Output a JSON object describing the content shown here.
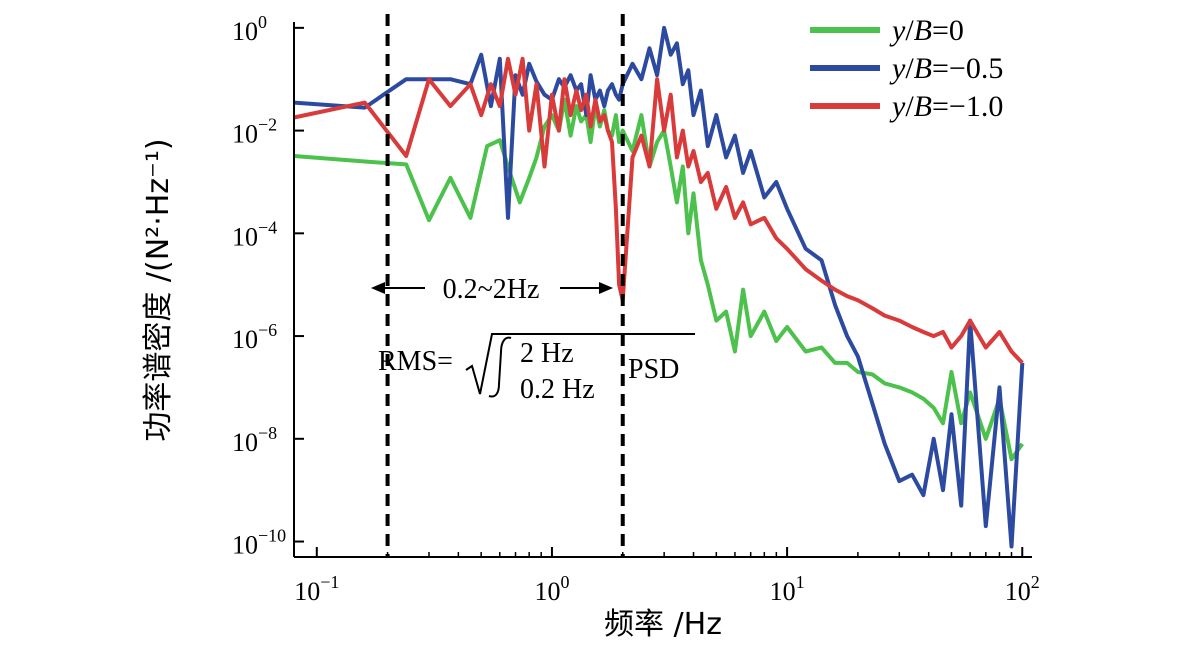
{
  "chart_data": {
    "type": "line",
    "title": "",
    "xlabel": "频率 /Hz",
    "ylabel": "功率谱密度 /(N²·Hz⁻¹)",
    "xscale": "log",
    "yscale": "log",
    "xlim": [
      0.08,
      110
    ],
    "ylim": [
      5e-11,
      1.3
    ],
    "grid": false,
    "legend_position": "top-right",
    "x_ticks": [
      {
        "base": "10",
        "exp": "−1",
        "value": 0.1
      },
      {
        "base": "10",
        "exp": "0",
        "value": 1
      },
      {
        "base": "10",
        "exp": "1",
        "value": 10
      },
      {
        "base": "10",
        "exp": "2",
        "value": 100
      }
    ],
    "y_ticks": [
      {
        "base": "10",
        "exp": "0",
        "value": 1
      },
      {
        "base": "10",
        "exp": "−2",
        "value": 0.01
      },
      {
        "base": "10",
        "exp": "−4",
        "value": 0.0001
      },
      {
        "base": "10",
        "exp": "−6",
        "value": 1e-06
      },
      {
        "base": "10",
        "exp": "−8",
        "value": 1e-08
      },
      {
        "base": "10",
        "exp": "−10",
        "value": 1e-10
      }
    ],
    "series": [
      {
        "name": "y/B=0",
        "name_parts": [
          "y",
          "/",
          "B",
          "=0"
        ],
        "color": "#4cc14c",
        "x": [
          0.08,
          0.16,
          0.24,
          0.3,
          0.37,
          0.45,
          0.53,
          0.6,
          0.66,
          0.73,
          0.8,
          0.86,
          0.93,
          1.0,
          1.07,
          1.13,
          1.2,
          1.27,
          1.33,
          1.4,
          1.46,
          1.53,
          1.6,
          1.67,
          1.73,
          1.8,
          1.87,
          1.93,
          2.0,
          2.2,
          2.4,
          2.6,
          2.8,
          3.0,
          3.2,
          3.4,
          3.6,
          3.8,
          4.0,
          4.3,
          4.6,
          5.0,
          5.5,
          6.0,
          6.5,
          7.0,
          8.0,
          9.0,
          10,
          12,
          14,
          16,
          18,
          20,
          23,
          26,
          30,
          34,
          38,
          42,
          46,
          50,
          55,
          60,
          70,
          80,
          90,
          100
        ],
        "y": [
          0.0032,
          0.0025,
          0.0022,
          0.00018,
          0.0012,
          0.0002,
          0.005,
          0.0065,
          0.0016,
          0.0004,
          0.0012,
          0.003,
          0.012,
          0.02,
          0.01,
          0.04,
          0.008,
          0.03,
          0.015,
          0.02,
          0.006,
          0.03,
          0.012,
          0.025,
          0.01,
          0.008,
          0.02,
          0.006,
          0.01,
          0.004,
          0.02,
          0.002,
          0.006,
          0.01,
          0.002,
          0.0004,
          0.002,
          0.0001,
          0.0006,
          3e-05,
          1e-05,
          2e-06,
          3e-06,
          5e-07,
          8e-06,
          1e-06,
          3e-06,
          8e-07,
          1.5e-06,
          5e-07,
          6e-07,
          3e-07,
          3e-07,
          2e-07,
          1.8e-07,
          1.2e-07,
          1e-07,
          8e-08,
          6e-08,
          4e-08,
          2e-08,
          2e-07,
          2e-08,
          8e-08,
          1e-08,
          6e-08,
          4e-09,
          8e-09
        ]
      },
      {
        "name": "y/B=−0.5",
        "name_parts": [
          "y",
          "/",
          "B",
          "=−0.5"
        ],
        "color": "#2c4aa0",
        "x": [
          0.08,
          0.16,
          0.24,
          0.3,
          0.37,
          0.45,
          0.5,
          0.55,
          0.6,
          0.65,
          0.7,
          0.75,
          0.8,
          0.86,
          0.93,
          1.0,
          1.07,
          1.13,
          1.2,
          1.27,
          1.33,
          1.4,
          1.46,
          1.53,
          1.6,
          1.67,
          1.73,
          1.8,
          1.87,
          1.93,
          2.0,
          2.2,
          2.4,
          2.6,
          2.8,
          3.0,
          3.2,
          3.4,
          3.6,
          3.8,
          4.0,
          4.3,
          4.6,
          5.0,
          5.5,
          6.0,
          6.5,
          7.0,
          8.0,
          9.0,
          10,
          12,
          14,
          16,
          18,
          20,
          23,
          26,
          30,
          34,
          38,
          42,
          46,
          50,
          55,
          60,
          70,
          80,
          90,
          100
        ],
        "y": [
          0.035,
          0.028,
          0.1,
          0.1,
          0.1,
          0.08,
          0.3,
          0.03,
          0.25,
          0.0002,
          0.12,
          0.05,
          0.2,
          0.09,
          0.05,
          0.04,
          0.1,
          0.07,
          0.12,
          0.06,
          0.08,
          0.02,
          0.12,
          0.04,
          0.06,
          0.03,
          0.06,
          0.08,
          0.05,
          0.04,
          0.08,
          0.2,
          0.1,
          0.4,
          0.12,
          1.0,
          0.3,
          0.5,
          0.08,
          0.15,
          0.02,
          0.06,
          0.005,
          0.02,
          0.003,
          0.008,
          0.0015,
          0.004,
          0.0005,
          0.001,
          0.0003,
          5e-05,
          3e-05,
          4e-06,
          1e-06,
          4e-07,
          5e-08,
          8e-09,
          1.5e-09,
          2e-09,
          8e-10,
          1e-08,
          1e-09,
          3e-08,
          5e-10,
          2e-06,
          2e-10,
          1e-07,
          8e-11,
          3e-07
        ]
      },
      {
        "name": "y/B=−1.0",
        "name_parts": [
          "y",
          "/",
          "B",
          "=−1.0"
        ],
        "color": "#d93a3a",
        "x": [
          0.08,
          0.16,
          0.24,
          0.3,
          0.37,
          0.45,
          0.5,
          0.55,
          0.6,
          0.65,
          0.7,
          0.75,
          0.8,
          0.86,
          0.93,
          1.0,
          1.07,
          1.13,
          1.2,
          1.27,
          1.33,
          1.4,
          1.46,
          1.53,
          1.6,
          1.67,
          1.73,
          1.8,
          1.87,
          1.93,
          2.0,
          2.2,
          2.4,
          2.6,
          2.8,
          3.0,
          3.2,
          3.4,
          3.6,
          3.8,
          4.0,
          4.3,
          4.6,
          5.0,
          5.5,
          6.0,
          6.5,
          7.0,
          8.0,
          9.0,
          10,
          12,
          14,
          16,
          18,
          20,
          23,
          26,
          30,
          34,
          38,
          42,
          46,
          50,
          55,
          60,
          70,
          80,
          90,
          100
        ],
        "y": [
          0.018,
          0.035,
          0.0032,
          0.1,
          0.03,
          0.08,
          0.02,
          0.08,
          0.03,
          0.25,
          0.05,
          0.25,
          0.01,
          0.08,
          0.002,
          0.05,
          0.01,
          0.1,
          0.02,
          0.06,
          0.025,
          0.05,
          0.012,
          0.04,
          0.015,
          0.02,
          0.01,
          0.006,
          0.0003,
          1e-05,
          5e-06,
          0.003,
          0.008,
          0.002,
          0.1,
          0.01,
          0.05,
          0.003,
          0.01,
          0.002,
          0.004,
          0.001,
          0.0015,
          0.0003,
          0.0008,
          0.0002,
          0.0004,
          0.00015,
          0.0002,
          8e-05,
          5e-05,
          2e-05,
          1.2e-05,
          8e-06,
          6e-06,
          5e-06,
          3.5e-06,
          2.5e-06,
          2e-06,
          1.5e-06,
          1.2e-06,
          1e-06,
          1.2e-06,
          6e-07,
          1e-06,
          2e-06,
          6e-07,
          1.2e-06,
          5e-07,
          3e-07
        ]
      }
    ],
    "vlines": [
      {
        "x": 0.2,
        "style": "dashed"
      },
      {
        "x": 2.0,
        "style": "dashed"
      }
    ],
    "annotations": {
      "range": "0.2~2Hz",
      "rms_prefix": "RMS=",
      "rms_upper": "2 Hz",
      "rms_lower": "0.2 Hz",
      "rms_suffix": "PSD"
    }
  }
}
